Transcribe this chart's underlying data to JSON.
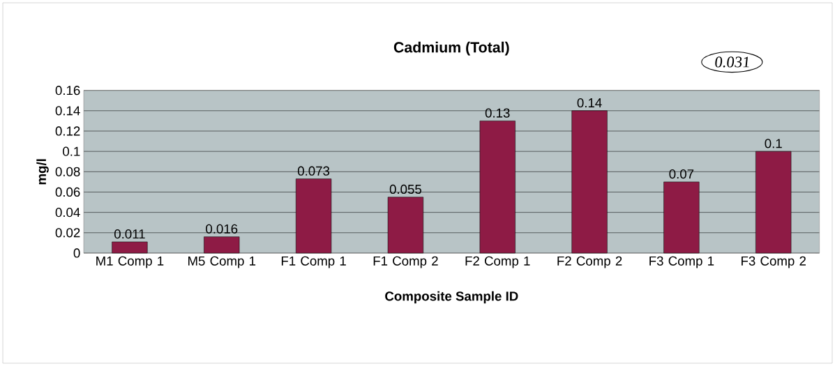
{
  "chart_data": {
    "type": "bar",
    "title": "Cadmium (Total)",
    "xlabel": "Composite Sample ID",
    "ylabel": "mg/l",
    "categories": [
      "M1 Comp 1",
      "M5 Comp 1",
      "F1 Comp 1",
      "F1 Comp 2",
      "F2 Comp 1",
      "F2 Comp 2",
      "F3 Comp 1",
      "F3 Comp 2"
    ],
    "values": [
      0.011,
      0.016,
      0.073,
      0.055,
      0.13,
      0.14,
      0.07,
      0.1
    ],
    "color": "#8e1b45",
    "ylim": [
      0,
      0.16
    ],
    "yticks": [
      0,
      0.02,
      0.04,
      0.06,
      0.08,
      0.1,
      0.12,
      0.14,
      0.16
    ],
    "grid": "y",
    "data_labels": true,
    "annotations": [
      "0.031"
    ]
  }
}
